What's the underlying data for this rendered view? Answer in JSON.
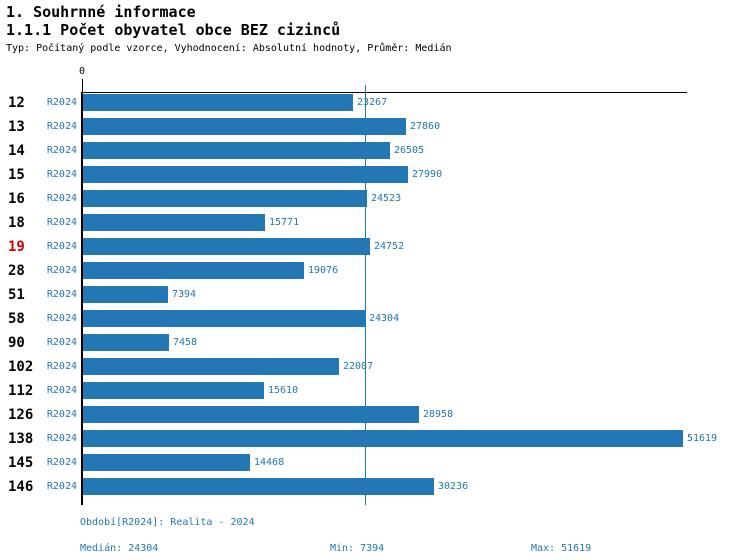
{
  "header": {
    "title": "1. Souhrnné informace",
    "subtitle": "1.1.1 Počet obyvatel obce BEZ cizinců",
    "description": "Typ: Počítaný podle vzorce, Vyhodnocení: Absolutní hodnoty, Průměr: Medián"
  },
  "chart_data": {
    "type": "bar",
    "orientation": "horizontal",
    "title": "1.1.1 Počet obyvatel obce BEZ cizinců",
    "categories": [
      "12",
      "13",
      "14",
      "15",
      "16",
      "18",
      "19",
      "28",
      "51",
      "58",
      "90",
      "102",
      "112",
      "126",
      "138",
      "145",
      "146"
    ],
    "series_label": "R2024",
    "values": [
      23267,
      27860,
      26505,
      27990,
      24523,
      15771,
      24752,
      19076,
      7394,
      24304,
      7458,
      22087,
      15610,
      28958,
      51619,
      14468,
      30236
    ],
    "highlighted_category": "19",
    "x_tick_labels": [
      "0"
    ],
    "xlim": [
      0,
      52000
    ],
    "median_line_value": 24304,
    "stats": {
      "median": 24304,
      "min": 7394,
      "max": 51619
    },
    "bar_color": "#2277b4",
    "label_color": "#2277b4",
    "highlight_color": "#d40000",
    "grid": false,
    "legend": false
  },
  "footer": {
    "period": "Období[R2024]: Realita - 2024",
    "median": "Medián: 24304",
    "min": "Min: 7394",
    "max": "Max: 51619"
  }
}
